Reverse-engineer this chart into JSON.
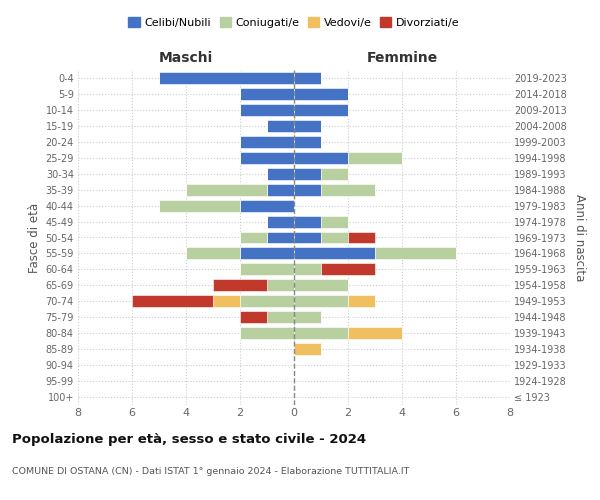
{
  "age_groups": [
    "100+",
    "95-99",
    "90-94",
    "85-89",
    "80-84",
    "75-79",
    "70-74",
    "65-69",
    "60-64",
    "55-59",
    "50-54",
    "45-49",
    "40-44",
    "35-39",
    "30-34",
    "25-29",
    "20-24",
    "15-19",
    "10-14",
    "5-9",
    "0-4"
  ],
  "birth_years": [
    "≤ 1923",
    "1924-1928",
    "1929-1933",
    "1934-1938",
    "1939-1943",
    "1944-1948",
    "1949-1953",
    "1954-1958",
    "1959-1963",
    "1964-1968",
    "1969-1973",
    "1974-1978",
    "1979-1983",
    "1984-1988",
    "1989-1993",
    "1994-1998",
    "1999-2003",
    "2004-2008",
    "2009-2013",
    "2014-2018",
    "2019-2023"
  ],
  "colors": {
    "celibi": "#4472c4",
    "coniugati": "#b8cfa0",
    "vedovi": "#f0c060",
    "divorziati": "#c0392b"
  },
  "maschi": {
    "celibi": [
      0,
      0,
      0,
      0,
      0,
      0,
      0,
      0,
      0,
      2,
      1,
      1,
      2,
      1,
      1,
      2,
      2,
      1,
      2,
      2,
      5
    ],
    "coniugati": [
      0,
      0,
      0,
      0,
      2,
      1,
      2,
      1,
      2,
      2,
      1,
      0,
      3,
      3,
      0,
      0,
      0,
      0,
      0,
      0,
      0
    ],
    "vedovi": [
      0,
      0,
      0,
      0,
      0,
      0,
      1,
      0,
      0,
      0,
      0,
      0,
      0,
      0,
      0,
      0,
      0,
      0,
      0,
      0,
      0
    ],
    "divorziati": [
      0,
      0,
      0,
      0,
      0,
      1,
      3,
      2,
      0,
      0,
      0,
      0,
      0,
      0,
      0,
      0,
      0,
      0,
      0,
      0,
      0
    ]
  },
  "femmine": {
    "celibi": [
      0,
      0,
      0,
      0,
      0,
      0,
      0,
      0,
      0,
      3,
      1,
      1,
      0,
      1,
      1,
      2,
      1,
      1,
      2,
      2,
      1
    ],
    "coniugati": [
      0,
      0,
      0,
      0,
      2,
      1,
      2,
      2,
      1,
      3,
      1,
      1,
      0,
      2,
      1,
      2,
      0,
      0,
      0,
      0,
      0
    ],
    "vedovi": [
      0,
      0,
      0,
      1,
      2,
      0,
      1,
      0,
      0,
      0,
      0,
      0,
      0,
      0,
      0,
      0,
      0,
      0,
      0,
      0,
      0
    ],
    "divorziati": [
      0,
      0,
      0,
      0,
      0,
      0,
      0,
      0,
      2,
      0,
      1,
      0,
      0,
      0,
      0,
      0,
      0,
      0,
      0,
      0,
      0
    ]
  },
  "xlim": 8,
  "title": "Popolazione per età, sesso e stato civile - 2024",
  "subtitle": "COMUNE DI OSTANA (CN) - Dati ISTAT 1° gennaio 2024 - Elaborazione TUTTITALIA.IT",
  "ylabel_left": "Fasce di età",
  "ylabel_right": "Anni di nascita"
}
